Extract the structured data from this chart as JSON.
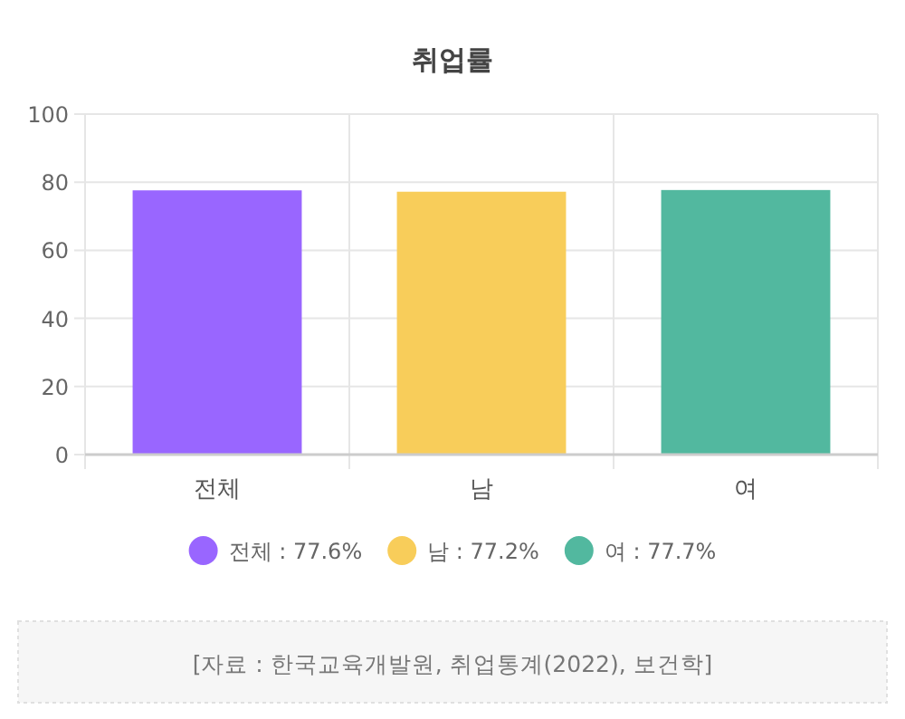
{
  "chart_data": {
    "type": "bar",
    "title": "취업률",
    "categories": [
      "전체",
      "남",
      "여"
    ],
    "series": [
      {
        "name": "전체 : 77.6%",
        "color": "#9966ff",
        "values": [
          77.6,
          null,
          null
        ]
      },
      {
        "name": "남 : 77.2%",
        "color": "#f8cd5a",
        "values": [
          null,
          77.2,
          null
        ]
      },
      {
        "name": "여 : 77.7%",
        "color": "#52b89f",
        "values": [
          null,
          null,
          77.7
        ]
      }
    ],
    "ylim": [
      0,
      100
    ],
    "yticks": [
      0,
      20,
      40,
      60,
      80,
      100
    ],
    "grid": true,
    "legend": "bottom",
    "annotations": [
      "[자료 : 한국교육개발원, 취업통계(2022), 보건학]"
    ]
  }
}
